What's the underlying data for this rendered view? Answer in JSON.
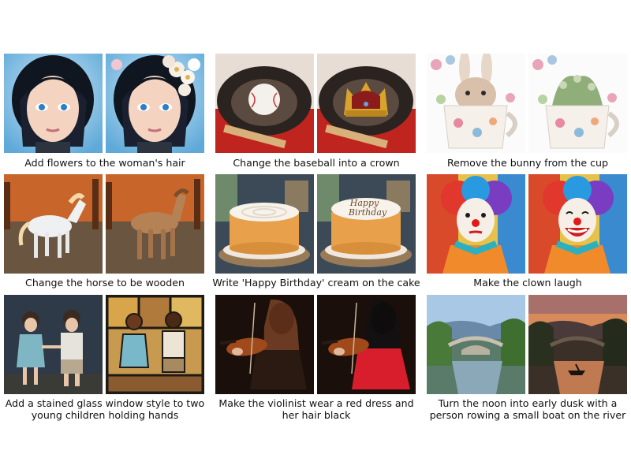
{
  "examples": [
    {
      "caption": "Add flowers to the woman's hair",
      "source_image": "anime-woman-portrait",
      "edited_image": "anime-woman-with-flowers-in-hair"
    },
    {
      "caption": "Change the baseball into a crown",
      "source_image": "baseball-in-glove",
      "edited_image": "crown-in-glove"
    },
    {
      "caption": "Remove the bunny from the cup",
      "source_image": "bunny-in-floral-cup",
      "edited_image": "plants-in-floral-cup"
    },
    {
      "caption": "Change the horse to be wooden",
      "source_image": "white-horse-in-field",
      "edited_image": "wooden-horse-in-field"
    },
    {
      "caption": "Write 'Happy Birthday' cream on the cake",
      "source_image": "cake-on-wood-slab",
      "edited_image": "cake-with-happy-birthday-text",
      "image_text": {
        "line1": "Happy",
        "line2": "Birthday"
      }
    },
    {
      "caption": "Make the clown laugh",
      "source_image": "colorful-clown",
      "edited_image": "laughing-colorful-clown"
    },
    {
      "caption": "Add a stained glass window style to two young children holding hands",
      "source_image": "two-children-holding-hands",
      "edited_image": "stained-glass-children"
    },
    {
      "caption": "Make the violinist wear a red dress and her hair black",
      "source_image": "violinist-dark-dress",
      "edited_image": "violinist-red-dress"
    },
    {
      "caption": "Turn the noon into early dusk with a person rowing a small boat on the river",
      "source_image": "river-bridge-noon",
      "edited_image": "river-bridge-dusk-with-boat"
    }
  ]
}
